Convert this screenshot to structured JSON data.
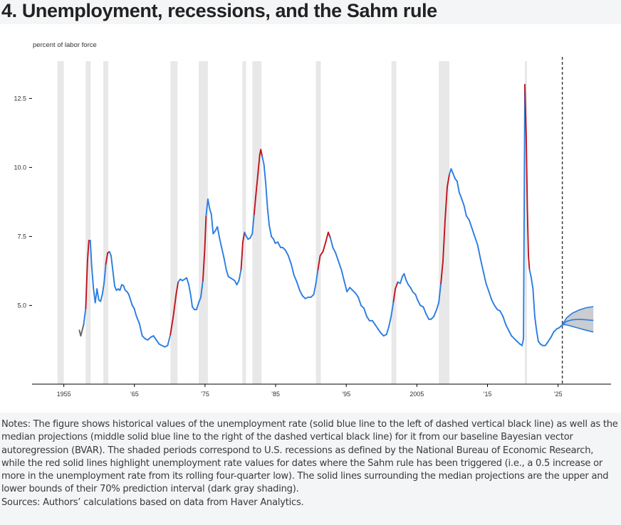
{
  "page": {
    "title": "4. Unemployment, recessions, and the Sahm rule",
    "notes": "Notes: The figure shows historical values of the unemployment rate (solid blue line to the left of dashed vertical black line) as well as the median projections (middle solid blue line to the right of the dashed vertical black line) for it from our baseline Bayesian vector autoregression (BVAR). The shaded periods correspond to U.S. recessions as defined by the National Bureau of Economic Research, while the red solid lines highlight unemployment rate values for dates where the Sahm rule has been triggered (i.e., a 0.5 increase or more in the unemployment rate from its rolling four-quarter low). The solid lines surrounding the median projections are the upper and lower bounds of their 70% prediction interval (dark gray shading).",
    "sources": "Sources: Authors’ calculations based on data from Haver Analytics."
  },
  "colors": {
    "historical": "#2a7de1",
    "sahm": "#c0131f",
    "recession": "#e8e8e8",
    "band": "#c9ccd1",
    "early": "#666666"
  },
  "chart_data": {
    "type": "line",
    "title": "",
    "ylabel": "percent of labor force",
    "xlabel": "",
    "xlim": [
      1950.5,
      2032.5
    ],
    "ylim": [
      2.15,
      13.85
    ],
    "yticks": [
      5.0,
      7.5,
      10.0,
      12.5
    ],
    "ytick_labels": [
      "5.0",
      "7.5",
      "10.0",
      "12.5"
    ],
    "xticks": [
      1955,
      1965,
      1975,
      1985,
      1995,
      2005,
      2015,
      2025
    ],
    "xtick_labels": [
      "1955",
      "’65",
      "’75",
      "’85",
      "’95",
      "2005",
      "’15",
      "’25"
    ],
    "grid": false,
    "forecast_start": 2025.6,
    "recessions": [
      [
        1954.1,
        1955.0
      ],
      [
        1958.1,
        1958.8
      ],
      [
        1960.6,
        1961.3
      ],
      [
        1970.1,
        1971.1
      ],
      [
        1974.1,
        1975.4
      ],
      [
        1980.3,
        1980.8
      ],
      [
        1981.7,
        1983.0
      ],
      [
        1990.7,
        1991.4
      ],
      [
        2001.4,
        2002.1
      ],
      [
        2008.1,
        2009.6
      ],
      [
        2020.3,
        2020.6
      ]
    ],
    "series": [
      {
        "role": "historical",
        "points": [
          [
            1957.2,
            4.1
          ],
          [
            1957.4,
            3.9
          ],
          [
            1957.8,
            4.3
          ],
          [
            1958.1,
            4.9
          ],
          [
            1958.35,
            6.6
          ],
          [
            1958.55,
            7.35
          ],
          [
            1958.75,
            7.35
          ],
          [
            1958.95,
            6.4
          ],
          [
            1959.2,
            5.6
          ],
          [
            1959.45,
            5.1
          ],
          [
            1959.7,
            5.6
          ],
          [
            1959.95,
            5.2
          ],
          [
            1960.2,
            5.15
          ],
          [
            1960.45,
            5.4
          ],
          [
            1960.7,
            5.8
          ],
          [
            1960.95,
            6.5
          ],
          [
            1961.2,
            6.9
          ],
          [
            1961.45,
            6.95
          ],
          [
            1961.7,
            6.8
          ],
          [
            1961.95,
            6.25
          ],
          [
            1962.2,
            5.7
          ],
          [
            1962.45,
            5.55
          ],
          [
            1962.7,
            5.6
          ],
          [
            1962.95,
            5.55
          ],
          [
            1963.2,
            5.75
          ],
          [
            1963.45,
            5.72
          ],
          [
            1963.7,
            5.55
          ],
          [
            1963.95,
            5.5
          ],
          [
            1964.2,
            5.4
          ],
          [
            1964.45,
            5.2
          ],
          [
            1964.7,
            5.0
          ],
          [
            1964.95,
            4.9
          ],
          [
            1965.3,
            4.6
          ],
          [
            1965.7,
            4.35
          ],
          [
            1966.1,
            3.9
          ],
          [
            1966.5,
            3.8
          ],
          [
            1966.9,
            3.75
          ],
          [
            1967.3,
            3.85
          ],
          [
            1967.7,
            3.9
          ],
          [
            1968.1,
            3.75
          ],
          [
            1968.5,
            3.6
          ],
          [
            1968.9,
            3.55
          ],
          [
            1969.3,
            3.5
          ],
          [
            1969.7,
            3.55
          ],
          [
            1970.1,
            3.95
          ],
          [
            1970.5,
            4.6
          ],
          [
            1970.9,
            5.4
          ],
          [
            1971.2,
            5.85
          ],
          [
            1971.5,
            5.95
          ],
          [
            1971.8,
            5.9
          ],
          [
            1972.1,
            5.95
          ],
          [
            1972.4,
            6.0
          ],
          [
            1972.7,
            5.75
          ],
          [
            1972.95,
            5.4
          ],
          [
            1973.2,
            4.95
          ],
          [
            1973.5,
            4.85
          ],
          [
            1973.8,
            4.85
          ],
          [
            1974.1,
            5.1
          ],
          [
            1974.4,
            5.3
          ],
          [
            1974.7,
            5.9
          ],
          [
            1974.95,
            7.0
          ],
          [
            1975.15,
            8.25
          ],
          [
            1975.4,
            8.85
          ],
          [
            1975.65,
            8.5
          ],
          [
            1975.9,
            8.3
          ],
          [
            1976.15,
            7.6
          ],
          [
            1976.45,
            7.7
          ],
          [
            1976.75,
            7.85
          ],
          [
            1977.05,
            7.45
          ],
          [
            1977.35,
            7.1
          ],
          [
            1977.7,
            6.7
          ],
          [
            1978.0,
            6.3
          ],
          [
            1978.3,
            6.05
          ],
          [
            1978.6,
            6.0
          ],
          [
            1978.9,
            5.95
          ],
          [
            1979.2,
            5.9
          ],
          [
            1979.5,
            5.75
          ],
          [
            1979.8,
            5.9
          ],
          [
            1980.1,
            6.3
          ],
          [
            1980.35,
            7.3
          ],
          [
            1980.6,
            7.65
          ],
          [
            1980.85,
            7.5
          ],
          [
            1981.1,
            7.4
          ],
          [
            1981.4,
            7.45
          ],
          [
            1981.7,
            7.6
          ],
          [
            1981.95,
            8.3
          ],
          [
            1982.2,
            9.0
          ],
          [
            1982.5,
            9.8
          ],
          [
            1982.75,
            10.45
          ],
          [
            1982.9,
            10.65
          ],
          [
            1983.1,
            10.4
          ],
          [
            1983.35,
            10.1
          ],
          [
            1983.6,
            9.4
          ],
          [
            1983.85,
            8.5
          ],
          [
            1984.1,
            7.9
          ],
          [
            1984.4,
            7.5
          ],
          [
            1984.7,
            7.4
          ],
          [
            1984.95,
            7.25
          ],
          [
            1985.3,
            7.3
          ],
          [
            1985.7,
            7.1
          ],
          [
            1986.0,
            7.1
          ],
          [
            1986.4,
            7.0
          ],
          [
            1986.8,
            6.8
          ],
          [
            1987.2,
            6.5
          ],
          [
            1987.6,
            6.1
          ],
          [
            1988.0,
            5.85
          ],
          [
            1988.4,
            5.55
          ],
          [
            1988.8,
            5.35
          ],
          [
            1989.2,
            5.25
          ],
          [
            1989.6,
            5.3
          ],
          [
            1990.0,
            5.3
          ],
          [
            1990.4,
            5.4
          ],
          [
            1990.7,
            5.8
          ],
          [
            1991.0,
            6.3
          ],
          [
            1991.3,
            6.8
          ],
          [
            1991.7,
            6.95
          ],
          [
            1992.1,
            7.3
          ],
          [
            1992.45,
            7.65
          ],
          [
            1992.75,
            7.45
          ],
          [
            1993.1,
            7.1
          ],
          [
            1993.5,
            6.9
          ],
          [
            1993.9,
            6.6
          ],
          [
            1994.3,
            6.3
          ],
          [
            1994.7,
            5.9
          ],
          [
            1995.1,
            5.5
          ],
          [
            1995.5,
            5.65
          ],
          [
            1995.9,
            5.55
          ],
          [
            1996.3,
            5.45
          ],
          [
            1996.7,
            5.3
          ],
          [
            1997.1,
            5.0
          ],
          [
            1997.5,
            4.9
          ],
          [
            1997.9,
            4.6
          ],
          [
            1998.3,
            4.45
          ],
          [
            1998.7,
            4.45
          ],
          [
            1999.1,
            4.3
          ],
          [
            1999.5,
            4.15
          ],
          [
            1999.9,
            4.0
          ],
          [
            2000.3,
            3.9
          ],
          [
            2000.7,
            3.95
          ],
          [
            2001.0,
            4.2
          ],
          [
            2001.35,
            4.6
          ],
          [
            2001.7,
            5.15
          ],
          [
            2001.95,
            5.6
          ],
          [
            2002.3,
            5.85
          ],
          [
            2002.65,
            5.8
          ],
          [
            2002.95,
            6.05
          ],
          [
            2003.2,
            6.15
          ],
          [
            2003.5,
            5.9
          ],
          [
            2003.8,
            5.75
          ],
          [
            2004.1,
            5.65
          ],
          [
            2004.4,
            5.5
          ],
          [
            2004.8,
            5.4
          ],
          [
            2005.1,
            5.2
          ],
          [
            2005.5,
            5.0
          ],
          [
            2005.9,
            4.95
          ],
          [
            2006.3,
            4.7
          ],
          [
            2006.7,
            4.5
          ],
          [
            2007.0,
            4.5
          ],
          [
            2007.4,
            4.6
          ],
          [
            2007.8,
            4.85
          ],
          [
            2008.1,
            5.1
          ],
          [
            2008.4,
            5.8
          ],
          [
            2008.7,
            6.6
          ],
          [
            2009.0,
            8.1
          ],
          [
            2009.3,
            9.3
          ],
          [
            2009.6,
            9.75
          ],
          [
            2009.85,
            9.95
          ],
          [
            2010.1,
            9.8
          ],
          [
            2010.4,
            9.6
          ],
          [
            2010.7,
            9.5
          ],
          [
            2011.0,
            9.1
          ],
          [
            2011.3,
            8.9
          ],
          [
            2011.7,
            8.6
          ],
          [
            2012.0,
            8.25
          ],
          [
            2012.4,
            8.1
          ],
          [
            2012.8,
            7.8
          ],
          [
            2013.2,
            7.5
          ],
          [
            2013.6,
            7.2
          ],
          [
            2014.0,
            6.7
          ],
          [
            2014.4,
            6.25
          ],
          [
            2014.8,
            5.8
          ],
          [
            2015.2,
            5.5
          ],
          [
            2015.6,
            5.2
          ],
          [
            2016.0,
            5.0
          ],
          [
            2016.4,
            4.85
          ],
          [
            2016.8,
            4.8
          ],
          [
            2017.2,
            4.6
          ],
          [
            2017.6,
            4.3
          ],
          [
            2018.0,
            4.1
          ],
          [
            2018.4,
            3.9
          ],
          [
            2018.8,
            3.8
          ],
          [
            2019.2,
            3.7
          ],
          [
            2019.6,
            3.6
          ],
          [
            2019.9,
            3.55
          ],
          [
            2020.1,
            3.8
          ],
          [
            2020.3,
            13.0
          ],
          [
            2020.5,
            11.0
          ],
          [
            2020.65,
            8.5
          ],
          [
            2020.8,
            6.8
          ],
          [
            2020.95,
            6.3
          ],
          [
            2021.2,
            6.0
          ],
          [
            2021.45,
            5.6
          ],
          [
            2021.7,
            4.6
          ],
          [
            2021.95,
            4.1
          ],
          [
            2022.2,
            3.7
          ],
          [
            2022.5,
            3.6
          ],
          [
            2022.8,
            3.55
          ],
          [
            2023.2,
            3.55
          ],
          [
            2023.6,
            3.7
          ],
          [
            2024.0,
            3.85
          ],
          [
            2024.4,
            4.05
          ],
          [
            2024.8,
            4.15
          ],
          [
            2025.2,
            4.2
          ],
          [
            2025.6,
            4.3
          ]
        ]
      },
      {
        "role": "median_forecast",
        "points": [
          [
            2025.6,
            4.3
          ],
          [
            2026.2,
            4.42
          ],
          [
            2027.0,
            4.48
          ],
          [
            2028.0,
            4.5
          ],
          [
            2029.0,
            4.48
          ],
          [
            2030.0,
            4.46
          ]
        ]
      },
      {
        "role": "upper_bound",
        "points": [
          [
            2025.6,
            4.3
          ],
          [
            2026.2,
            4.55
          ],
          [
            2027.0,
            4.72
          ],
          [
            2028.0,
            4.84
          ],
          [
            2029.0,
            4.92
          ],
          [
            2030.0,
            4.96
          ]
        ]
      },
      {
        "role": "lower_bound",
        "points": [
          [
            2025.6,
            4.3
          ],
          [
            2026.2,
            4.3
          ],
          [
            2027.0,
            4.24
          ],
          [
            2028.0,
            4.17
          ],
          [
            2029.0,
            4.1
          ],
          [
            2030.0,
            4.04
          ]
        ]
      }
    ],
    "sahm_triggered": [
      [
        1958.1,
        1958.75
      ],
      [
        1960.95,
        1961.5
      ],
      [
        1970.1,
        1971.2
      ],
      [
        1974.7,
        1975.15
      ],
      [
        1980.1,
        1980.6
      ],
      [
        1981.95,
        1983.1
      ],
      [
        1991.0,
        1992.75
      ],
      [
        2001.7,
        2002.3
      ],
      [
        2008.4,
        2009.6
      ],
      [
        2020.3,
        2020.95
      ]
    ]
  }
}
